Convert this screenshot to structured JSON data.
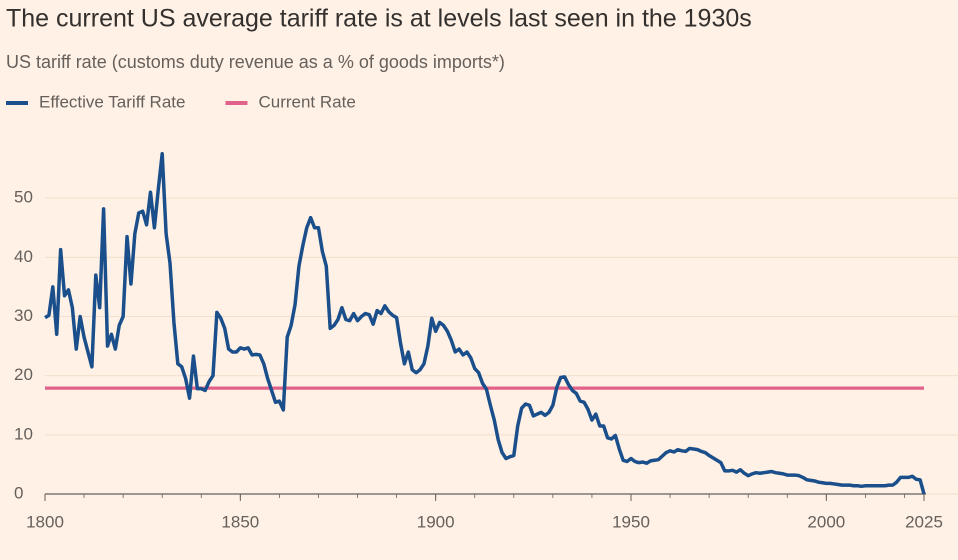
{
  "chart_data": {
    "type": "line",
    "title": "The current US average tariff rate is at levels last seen in the 1930s",
    "subtitle": "US tariff rate (customs duty revenue as a % of goods imports*)",
    "xlim": [
      1800,
      2025
    ],
    "xticks": [
      1800,
      1850,
      1900,
      1950,
      2000,
      2025
    ],
    "ylim": [
      0,
      60
    ],
    "yticks": [
      0,
      10,
      20,
      30,
      40,
      50
    ],
    "grid": true,
    "series": [
      {
        "name": "Effective Tariff Rate",
        "color": "#1a4f8b",
        "x": [
          1800,
          1801,
          1802,
          1803,
          1804,
          1805,
          1806,
          1807,
          1808,
          1809,
          1810,
          1811,
          1812,
          1813,
          1814,
          1815,
          1816,
          1817,
          1818,
          1819,
          1820,
          1821,
          1822,
          1823,
          1824,
          1825,
          1826,
          1827,
          1828,
          1829,
          1830,
          1831,
          1832,
          1833,
          1834,
          1835,
          1836,
          1837,
          1838,
          1839,
          1840,
          1841,
          1842,
          1843,
          1844,
          1845,
          1846,
          1847,
          1848,
          1849,
          1850,
          1851,
          1852,
          1853,
          1854,
          1855,
          1856,
          1857,
          1858,
          1859,
          1860,
          1861,
          1862,
          1863,
          1864,
          1865,
          1866,
          1867,
          1868,
          1869,
          1870,
          1871,
          1872,
          1873,
          1874,
          1875,
          1876,
          1877,
          1878,
          1879,
          1880,
          1881,
          1882,
          1883,
          1884,
          1885,
          1886,
          1887,
          1888,
          1889,
          1890,
          1891,
          1892,
          1893,
          1894,
          1895,
          1896,
          1897,
          1898,
          1899,
          1900,
          1901,
          1902,
          1903,
          1904,
          1905,
          1906,
          1907,
          1908,
          1909,
          1910,
          1911,
          1912,
          1913,
          1914,
          1915,
          1916,
          1917,
          1918,
          1919,
          1920,
          1921,
          1922,
          1923,
          1924,
          1925,
          1926,
          1927,
          1928,
          1929,
          1930,
          1931,
          1932,
          1933,
          1934,
          1935,
          1936,
          1937,
          1938,
          1939,
          1940,
          1941,
          1942,
          1943,
          1944,
          1945,
          1946,
          1947,
          1948,
          1949,
          1950,
          1951,
          1952,
          1953,
          1954,
          1955,
          1956,
          1957,
          1958,
          1959,
          1960,
          1961,
          1962,
          1963,
          1964,
          1965,
          1966,
          1967,
          1968,
          1969,
          1970,
          1971,
          1972,
          1973,
          1974,
          1975,
          1976,
          1977,
          1978,
          1979,
          1980,
          1981,
          1982,
          1983,
          1984,
          1985,
          1986,
          1987,
          1988,
          1989,
          1990,
          1991,
          1992,
          1993,
          1994,
          1995,
          1996,
          1997,
          1998,
          1999,
          2000,
          2001,
          2002,
          2003,
          2004,
          2005,
          2006,
          2007,
          2008,
          2009,
          2010,
          2011,
          2012,
          2013,
          2014,
          2015,
          2016,
          2017,
          2018,
          2019,
          2020,
          2021,
          2022,
          2023,
          2024,
          2025
        ],
        "values": [
          29.8,
          30.2,
          35,
          27,
          41.3,
          33.5,
          34.5,
          31.5,
          24.5,
          30,
          26.5,
          24,
          21.5,
          37,
          31.5,
          48.2,
          25,
          27,
          24.5,
          28.5,
          30,
          43.5,
          35.5,
          44,
          47.5,
          47.8,
          45.5,
          51,
          45,
          51.5,
          57.5,
          44,
          39,
          29,
          22,
          21.5,
          19.5,
          16.2,
          23.3,
          17.8,
          17.8,
          17.5,
          19,
          20,
          30.7,
          29.7,
          28,
          24.5,
          24,
          24,
          24.7,
          24.5,
          24.7,
          23.5,
          23.6,
          23.5,
          22,
          19.5,
          17.5,
          15.5,
          15.7,
          14.2,
          26.5,
          28.5,
          32,
          38.5,
          42,
          45,
          46.7,
          45,
          45,
          41,
          38.5,
          28,
          28.5,
          29.5,
          31.5,
          29.5,
          29.3,
          30.5,
          29.3,
          30,
          30.5,
          30.3,
          28.7,
          31,
          30.5,
          31.8,
          30.8,
          30.2,
          29.8,
          25.5,
          22,
          24,
          21,
          20.5,
          21,
          22,
          25,
          29.7,
          27.5,
          29,
          28.5,
          27.5,
          26,
          24,
          24.5,
          23.5,
          24,
          23,
          21.2,
          20.5,
          18.7,
          17.7,
          15,
          12.5,
          9.2,
          7,
          6,
          6.3,
          6.5,
          11.5,
          14.5,
          15.2,
          15,
          13.2,
          13.5,
          13.8,
          13.3,
          13.8,
          15,
          18,
          19.7,
          19.8,
          18.5,
          17.5,
          17,
          15.7,
          15.5,
          14.3,
          12.5,
          13.5,
          11.5,
          11.5,
          9.5,
          9.3,
          9.9,
          7.6,
          5.7,
          5.5,
          6,
          5.5,
          5.3,
          5.4,
          5.2,
          5.6,
          5.7,
          5.8,
          6.4,
          7,
          7.3,
          7.1,
          7.5,
          7.3,
          7.2,
          7.7,
          7.6,
          7.5,
          7.2,
          7,
          6.5,
          6.1,
          5.7,
          5.3,
          3.9,
          3.9,
          4,
          3.7,
          4.1,
          3.5,
          3.1,
          3.4,
          3.6,
          3.5,
          3.6,
          3.7,
          3.8,
          3.6,
          3.5,
          3.4,
          3.2,
          3.2,
          3.2,
          3.1,
          2.8,
          2.4,
          2.3,
          2.2,
          2,
          1.9,
          1.8,
          1.8,
          1.7,
          1.6,
          1.5,
          1.5,
          1.5,
          1.4,
          1.4,
          1.3,
          1.4,
          1.4,
          1.4,
          1.4,
          1.4,
          1.4,
          1.5,
          1.5,
          2,
          2.8,
          2.8,
          2.8,
          3,
          2.5,
          2.4,
          0
        ]
      },
      {
        "name": "Current Rate",
        "color": "#e0628a",
        "x": [
          1800,
          2025
        ],
        "values": [
          17.9,
          17.9
        ]
      }
    ]
  }
}
